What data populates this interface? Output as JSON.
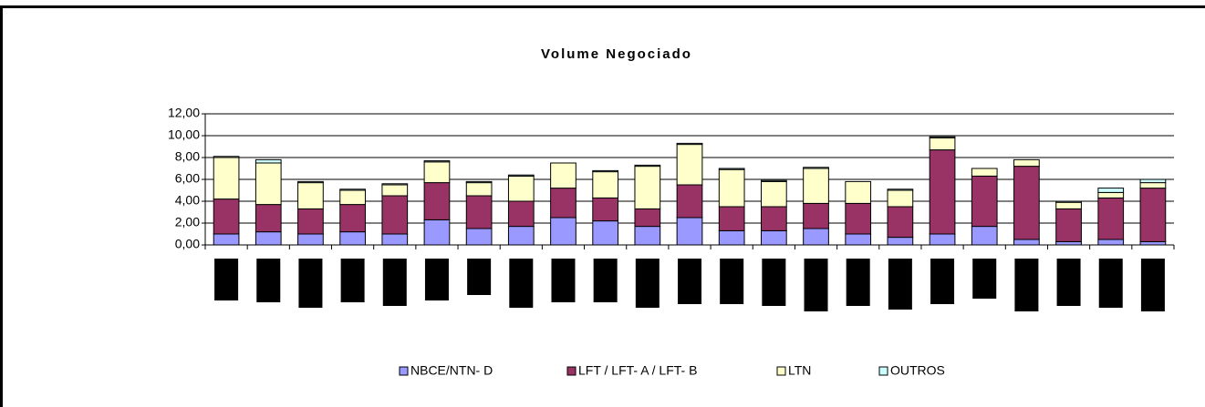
{
  "chart_data": {
    "type": "bar",
    "stacked": true,
    "title": "Volume Negociado",
    "categories": [
      null,
      null,
      null,
      null,
      null,
      null,
      null,
      null,
      null,
      null,
      null,
      null,
      null,
      null,
      null,
      null,
      null,
      null,
      null,
      null,
      null,
      null,
      null
    ],
    "series": [
      {
        "name": "NBCE/NTN- D",
        "color": "#9999ff",
        "values": [
          1.0,
          1.2,
          1.0,
          1.2,
          1.0,
          2.3,
          1.5,
          1.7,
          2.5,
          2.2,
          1.7,
          2.5,
          1.3,
          1.3,
          1.5,
          1.0,
          0.7,
          1.0,
          1.7,
          0.5,
          0.3,
          0.5,
          0.3
        ]
      },
      {
        "name": "LFT / LFT- A / LFT- B",
        "color": "#993366",
        "values": [
          3.2,
          2.5,
          2.3,
          2.5,
          3.5,
          3.4,
          3.0,
          2.3,
          2.7,
          2.1,
          1.6,
          3.0,
          2.2,
          2.2,
          2.3,
          2.8,
          2.8,
          7.7,
          4.6,
          6.7,
          3.0,
          3.8,
          4.9
        ]
      },
      {
        "name": "LTN",
        "color": "#ffffcc",
        "values": [
          3.8,
          3.8,
          2.4,
          1.3,
          1.0,
          1.9,
          1.2,
          2.3,
          2.3,
          2.4,
          3.9,
          3.7,
          3.4,
          2.3,
          3.2,
          2.0,
          1.5,
          1.1,
          0.7,
          0.6,
          0.6,
          0.5,
          0.5
        ]
      },
      {
        "name": "OUTROS",
        "color": "#ccffff",
        "values": [
          0.1,
          0.3,
          0.1,
          0.1,
          0.1,
          0.1,
          0.1,
          0.1,
          0,
          0.1,
          0.1,
          0.1,
          0.1,
          0.1,
          0.1,
          0,
          0.1,
          0.1,
          0,
          0,
          0.1,
          0.4,
          0.3
        ]
      }
    ],
    "ylim": [
      0,
      12
    ],
    "yticks": [
      {
        "value": 0,
        "label": "0,00"
      },
      {
        "value": 2,
        "label": "2,00"
      },
      {
        "value": 4,
        "label": "4,00"
      },
      {
        "value": 6,
        "label": "6,00"
      },
      {
        "value": 8,
        "label": "8,00"
      },
      {
        "value": 10,
        "label": "10,00"
      },
      {
        "value": 12,
        "label": "12,00"
      }
    ],
    "grid": true,
    "legend": "bottom"
  }
}
